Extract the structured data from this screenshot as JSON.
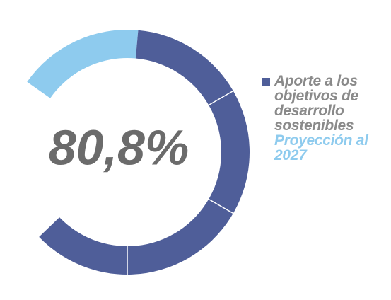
{
  "chart_data": {
    "type": "donut",
    "center_label": "80,8%",
    "series": [
      {
        "name": "Proyección al 2027",
        "color": "#8ecbee",
        "values": [
          16.7
        ]
      },
      {
        "name": "Aporte a los objetivos de desarrollo sostenibles",
        "color": "#4f5e99",
        "values": [
          61.4
        ]
      }
    ]
  }
}
